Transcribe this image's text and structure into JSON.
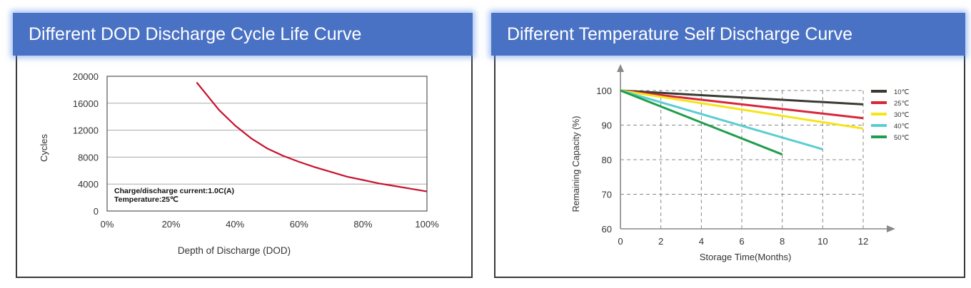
{
  "chart_data": [
    {
      "type": "line",
      "title": "Different DOD Discharge Cycle Life Curve",
      "xlabel": "Depth of Discharge (DOD)",
      "ylabel": "Cycles",
      "xlim": [
        0,
        100
      ],
      "ylim": [
        0,
        20000
      ],
      "x_ticks": [
        0,
        20,
        40,
        60,
        80,
        100
      ],
      "x_tick_labels": [
        "0%",
        "20%",
        "40%",
        "60%",
        "80%",
        "100%"
      ],
      "y_ticks": [
        0,
        4000,
        8000,
        12000,
        16000,
        20000
      ],
      "y_tick_labels": [
        "0",
        "4000",
        "8000",
        "12000",
        "16000",
        "20000"
      ],
      "grid": "horizontal",
      "annotations": [
        "Charge/discharge current:1.0C(A)",
        "Temperature:25℃"
      ],
      "series": [
        {
          "color": "#c8102e",
          "x": [
            28,
            35,
            40,
            45,
            50,
            55,
            60,
            65,
            70,
            75,
            80,
            85,
            90,
            95,
            100
          ],
          "y": [
            19100,
            15000,
            12700,
            10800,
            9300,
            8200,
            7300,
            6500,
            5800,
            5100,
            4600,
            4100,
            3700,
            3300,
            2900
          ]
        }
      ]
    },
    {
      "type": "line",
      "title": "Different Temperature Self Discharge Curve",
      "xlabel": "Storage Time(Months)",
      "ylabel": "Remaining Capacity (%)",
      "xlim": [
        0,
        12
      ],
      "ylim": [
        60,
        100
      ],
      "x_ticks": [
        0,
        2,
        4,
        6,
        8,
        10,
        12
      ],
      "x_tick_labels": [
        "0",
        "2",
        "4",
        "6",
        "8",
        "10",
        "12"
      ],
      "y_ticks": [
        60,
        70,
        80,
        90,
        100
      ],
      "y_tick_labels": [
        "60",
        "70",
        "80",
        "90",
        "100"
      ],
      "grid": "dashed",
      "legend": "right",
      "series": [
        {
          "name": "10℃",
          "color": "#3a3a32",
          "x": [
            0,
            12
          ],
          "y": [
            100,
            96
          ]
        },
        {
          "name": "25℃",
          "color": "#d9263a",
          "x": [
            0,
            12
          ],
          "y": [
            100,
            92
          ]
        },
        {
          "name": "30℃",
          "color": "#f5e51a",
          "x": [
            0,
            12
          ],
          "y": [
            100,
            89
          ]
        },
        {
          "name": "40℃",
          "color": "#5bcdd1",
          "x": [
            0,
            10
          ],
          "y": [
            100,
            83
          ]
        },
        {
          "name": "50℃",
          "color": "#1f9e4c",
          "x": [
            0,
            8
          ],
          "y": [
            100,
            81.5
          ]
        }
      ]
    }
  ]
}
